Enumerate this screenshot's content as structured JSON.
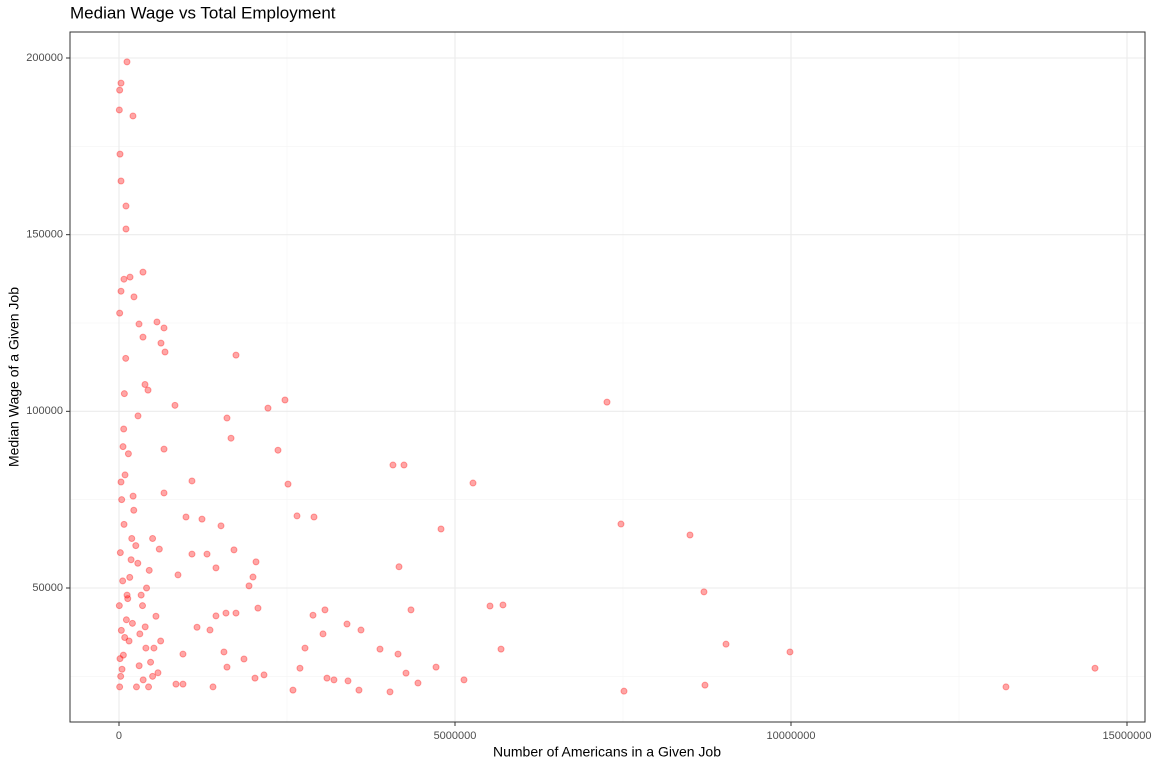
{
  "chart_data": {
    "type": "scatter",
    "title": "Median Wage vs Total Employment",
    "x_label": "Number of Americans in a Given Job",
    "y_label": "Median Wage of a Given Job",
    "color": "#ff0000",
    "opacity": 0.35,
    "grid": true,
    "xlim": [
      -729000,
      15268000
    ],
    "ylim": [
      12075,
      207360
    ],
    "xticks": [
      0,
      5000000,
      10000000,
      15000000
    ],
    "yticks": [
      50000,
      100000,
      150000,
      200000
    ],
    "xminor": [
      2500000,
      7500000,
      12500000
    ],
    "yminor": [
      25000,
      75000,
      125000,
      175000
    ],
    "x": [
      119000,
      30000,
      10000,
      5000,
      208000,
      15000,
      30000,
      104000,
      104000,
      357000,
      164000,
      74000,
      30000,
      223000,
      10000,
      565000,
      298000,
      670000,
      357000,
      625000,
      685000,
      1741000,
      387000,
      432000,
      833000,
      2217000,
      2470000,
      7262000,
      1607000,
      283000,
      1667000,
      2366000,
      670000,
      4077000,
      4241000,
      1086000,
      5268000,
      2515000,
      670000,
      997000,
      2649000,
      2902000,
      1235000,
      4792000,
      7470000,
      1518000,
      8497000,
      1711000,
      1310000,
      1086000,
      2039000,
      4167000,
      1443000,
      878000,
      1994000,
      1935000,
      8705000,
      5521000,
      5714000,
      2068000,
      4345000,
      1592000,
      1443000,
      1741000,
      2887000,
      3065000,
      3393000,
      3601000,
      3036000,
      1161000,
      1354000,
      9033000,
      5685000,
      3884000,
      2768000,
      9985000,
      4152000,
      952000,
      1562000,
      1860000,
      4718000,
      14524000,
      1607000,
      2693000,
      4271000,
      2158000,
      2024000,
      4449000,
      5134000,
      3095000,
      3199000,
      3408000,
      1399000,
      13199000,
      8720000,
      7515000,
      2589000,
      3571000,
      4033000,
      848000,
      952000,
      5000,
      20000,
      40000,
      60000,
      80000,
      100000,
      15000,
      35000,
      55000,
      75000,
      90000,
      120000,
      150000,
      180000,
      200000,
      250000,
      300000,
      350000,
      400000,
      450000,
      500000,
      550000,
      600000,
      10000,
      25000,
      45000,
      65000,
      85000,
      110000,
      130000,
      160000,
      190000,
      220000,
      260000,
      310000,
      360000,
      410000,
      470000,
      520000,
      580000,
      30000,
      70000,
      140000,
      210000,
      280000,
      330000,
      390000,
      440000,
      500000,
      620000
    ],
    "values": [
      198900,
      192900,
      190900,
      185300,
      183600,
      172800,
      165200,
      158100,
      151600,
      139400,
      138000,
      137400,
      134000,
      132400,
      127800,
      125300,
      124700,
      123600,
      121000,
      119300,
      116800,
      115900,
      107600,
      106000,
      101700,
      100900,
      103200,
      102600,
      98100,
      98700,
      92400,
      89000,
      89300,
      84800,
      84800,
      80300,
      79700,
      79400,
      76900,
      70100,
      70400,
      70100,
      69500,
      66700,
      68100,
      67600,
      65000,
      60800,
      59600,
      59600,
      57400,
      56000,
      55700,
      53700,
      53100,
      50600,
      48900,
      44900,
      45200,
      44300,
      43800,
      42900,
      42100,
      42900,
      42300,
      43800,
      39800,
      38100,
      37000,
      38900,
      38100,
      34100,
      32700,
      32700,
      33000,
      31900,
      31300,
      31300,
      31900,
      29900,
      27600,
      27300,
      27600,
      27300,
      25900,
      25400,
      24500,
      23100,
      24000,
      24500,
      24000,
      23700,
      22000,
      22000,
      22500,
      20800,
      21100,
      21100,
      20600,
      22800,
      22800,
      45000,
      60000,
      75000,
      90000,
      105000,
      115000,
      30000,
      38000,
      52000,
      68000,
      82000,
      48000,
      35000,
      58000,
      40000,
      62000,
      28000,
      45000,
      33000,
      55000,
      25000,
      42000,
      61000,
      22000,
      25000,
      27000,
      31000,
      36000,
      41000,
      47000,
      53000,
      64000,
      72000,
      22000,
      37000,
      24000,
      50000,
      29000,
      33000,
      26000,
      80000,
      95000,
      88000,
      76000,
      57000,
      48000,
      39000,
      22000,
      64000,
      35000
    ]
  }
}
